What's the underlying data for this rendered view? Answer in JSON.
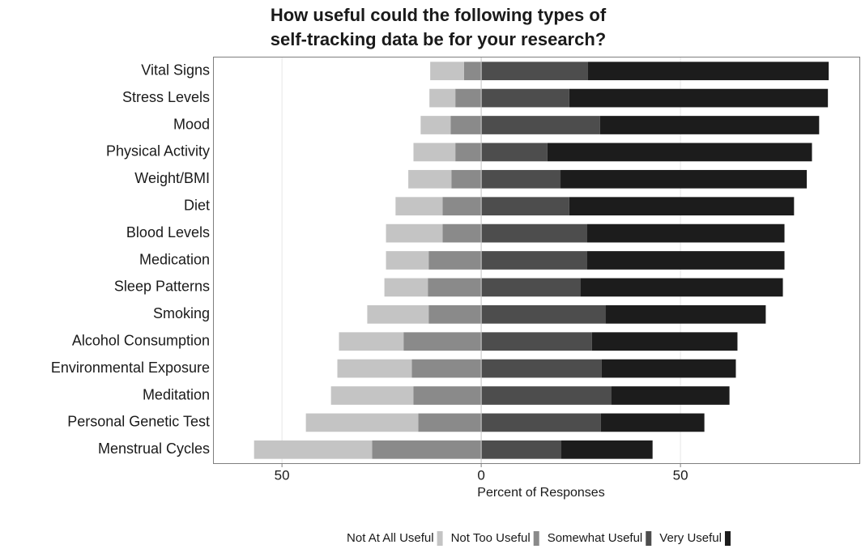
{
  "chart_data": {
    "type": "diverging-bar",
    "title": [
      "How useful could the following types of",
      "self-tracking data be for your research?"
    ],
    "x_label": "Percent of Responses",
    "categories": [
      "Vital Signs",
      "Stress Levels",
      "Mood",
      "Physical Activity",
      "Weight/BMI",
      "Diet",
      "Blood Levels",
      "Medication",
      "Sleep Patterns",
      "Smoking",
      "Alcohol Consumption",
      "Environmental Exposure",
      "Meditation",
      "Personal Genetic Test",
      "Menstrual Cycles"
    ],
    "series": [
      {
        "name": "Not At All Useful",
        "color": "#c4c4c4",
        "values": [
          -8.5,
          -6.5,
          -7.5,
          -10.5,
          -10.8,
          -11.8,
          -14.2,
          -10.7,
          -10.9,
          -15.4,
          -16.2,
          -18.7,
          -20.7,
          -28.2,
          -29.6
        ]
      },
      {
        "name": "Not Too Useful",
        "color": "#8a8a8a",
        "values": [
          -4.3,
          -6.5,
          -7.7,
          -6.5,
          -7.5,
          -9.7,
          -9.7,
          -13.2,
          -13.4,
          -13.2,
          -19.5,
          -17.4,
          -17.0,
          -15.8,
          -27.4
        ]
      },
      {
        "name": "Somewhat Useful",
        "color": "#4d4d4d",
        "values": [
          26.8,
          22.1,
          29.8,
          16.6,
          19.9,
          22.1,
          26.6,
          26.6,
          24.9,
          31.2,
          27.8,
          30.2,
          32.7,
          30.0,
          20.1
        ]
      },
      {
        "name": "Very Useful",
        "color": "#1c1c1c",
        "values": [
          60.4,
          64.9,
          55.0,
          66.4,
          61.8,
          56.4,
          49.5,
          49.5,
          50.8,
          40.2,
          36.5,
          33.7,
          29.6,
          26.0,
          22.9
        ]
      }
    ],
    "xlim": [
      -67.1,
      95.1
    ],
    "xticks": [
      {
        "value": -50,
        "label": "50"
      },
      0,
      50
    ],
    "grid": true,
    "legend": "bottom"
  }
}
